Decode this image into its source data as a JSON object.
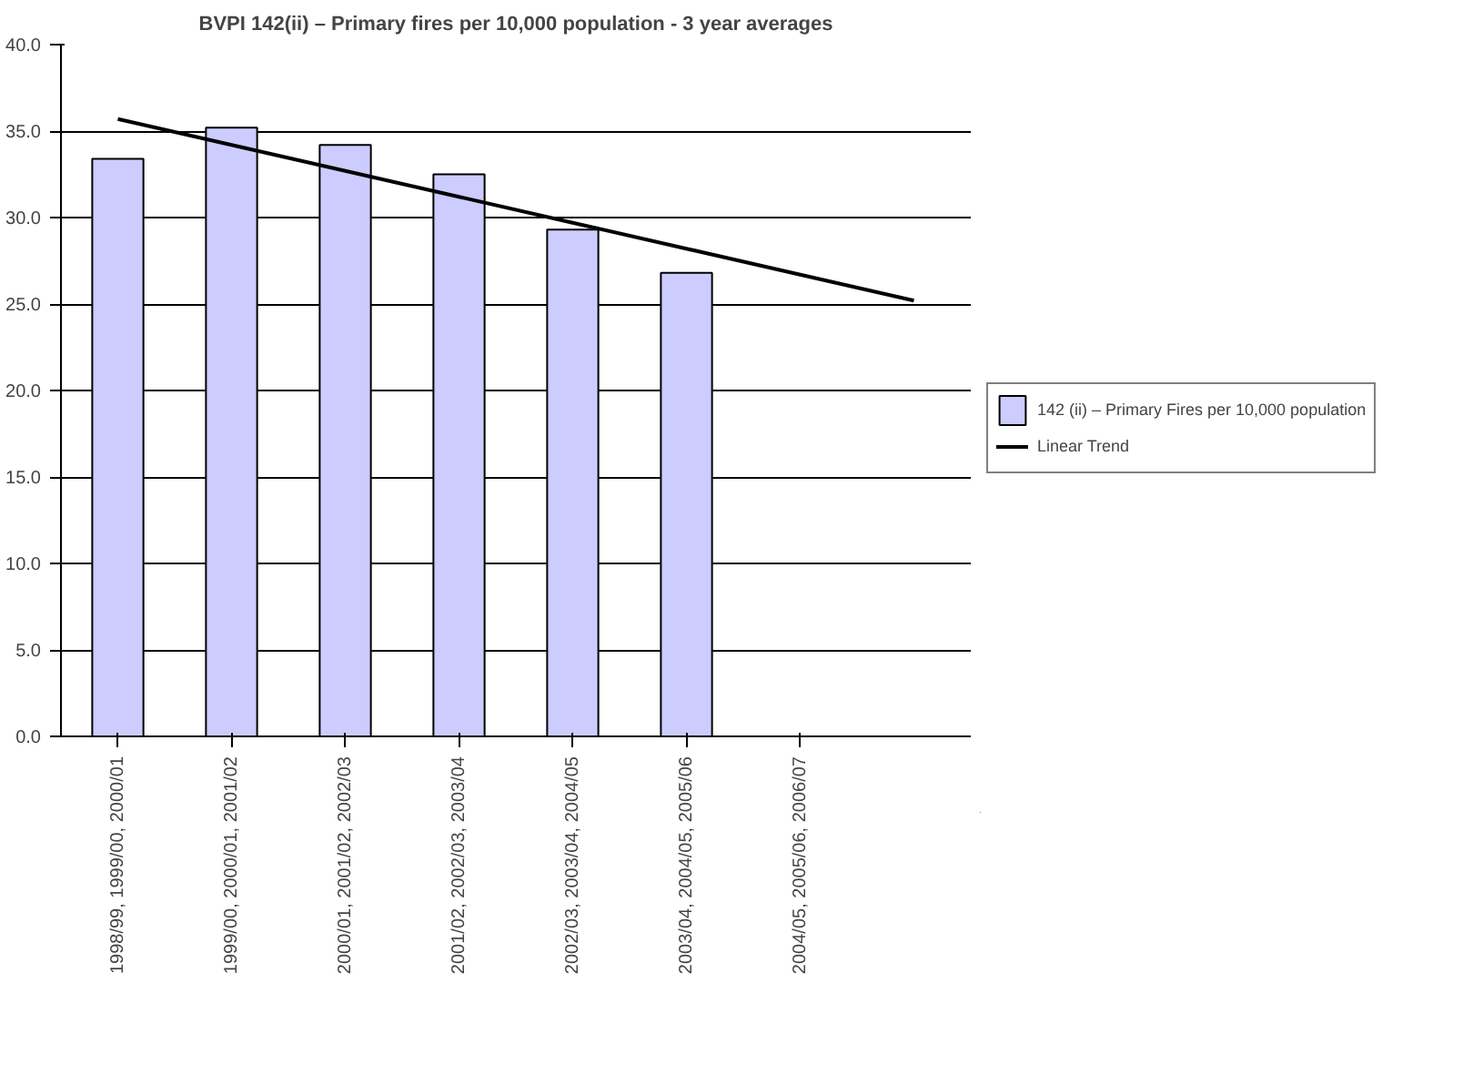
{
  "chart_data": {
    "type": "bar",
    "title": "BVPI 142(ii) – Primary fires per 10,000 population - 3 year averages",
    "categories": [
      "1998/99, 1999/00, 2000/01",
      "1999/00, 2000/01, 2001/02",
      "2000/01, 2001/02, 2002/03",
      "2001/02, 2002/03, 2003/04",
      "2002/03, 2003/04, 2004/05",
      "2003/04, 2004/05, 2005/06",
      "2004/05, 2005/06, 2006/07",
      null
    ],
    "series": [
      {
        "name": "142 (ii) – Primary Fires per 10,000 population",
        "color": "#ccccff",
        "values": [
          33.4,
          35.2,
          34.2,
          32.5,
          29.3,
          26.8,
          null,
          null
        ]
      },
      {
        "name": "Linear Trend",
        "type": "line",
        "color": "#000000",
        "values": [
          35.7,
          34.2,
          32.7,
          31.2,
          29.7,
          28.2,
          26.7,
          25.2
        ]
      }
    ],
    "ylim": [
      0,
      40
    ],
    "yticks": [
      {
        "value": 0,
        "label": "0.0"
      },
      {
        "value": 5,
        "label": "5.0"
      },
      {
        "value": 10,
        "label": "10.0"
      },
      {
        "value": 15,
        "label": "15.0"
      },
      {
        "value": 20,
        "label": "20.0"
      },
      {
        "value": 25,
        "label": "25.0"
      },
      {
        "value": 30,
        "label": "30.0"
      },
      {
        "value": 35,
        "label": "35.0"
      },
      {
        "value": 40,
        "label": "40.0"
      }
    ],
    "grid": "y",
    "legend": "right"
  }
}
